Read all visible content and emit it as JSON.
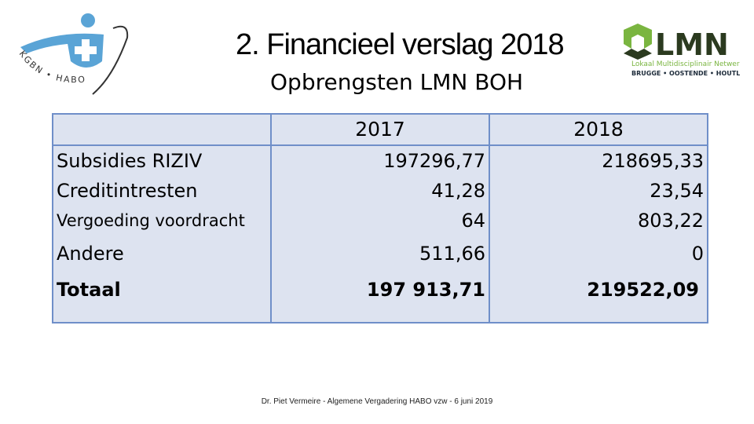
{
  "logos": {
    "left": {
      "text": "KGBN • HABO",
      "colors": {
        "blue": "#5aa4d6",
        "dark": "#333333"
      }
    },
    "right": {
      "name": "LMN",
      "subtitle": "Lokaal Multidisciplinair Netwerk",
      "locations": "BRUGGE • OOSTENDE • HOUTLAND",
      "colors": {
        "green": "#7ab540",
        "dark": "#2b3a1f",
        "text": "#1d2b3a"
      }
    }
  },
  "slide": {
    "title": "2. Financieel verslag 2018",
    "subtitle": "Opbrengsten LMN BOH"
  },
  "table": {
    "headers": {
      "label": "",
      "y2017": "2017",
      "y2018": "2018"
    },
    "rows": [
      {
        "label": "Subsidies RIZIV",
        "v2017": "197296,77",
        "v2018": "218695,33"
      },
      {
        "label": "Creditintresten",
        "v2017": "41,28",
        "v2018": "23,54"
      },
      {
        "label": "Vergoeding voordracht",
        "v2017": "64",
        "v2018": "803,22"
      },
      {
        "label": "Andere",
        "v2017": "511,66",
        "v2018": "0"
      }
    ],
    "total": {
      "label": "Totaal",
      "v2017": "197 913,71",
      "v2018": "219522,09"
    },
    "colors": {
      "fill": "#dde3f0",
      "border": "#6f8fc9"
    }
  },
  "footer": "Dr. Piet Vermeire - Algemene Vergadering HABO vzw - 6 juni 2019"
}
